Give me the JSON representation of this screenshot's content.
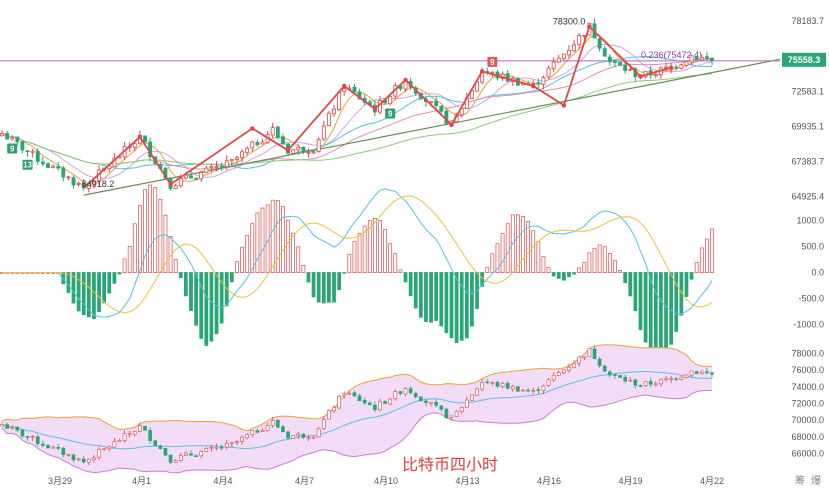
{
  "chart_data": [
    {
      "type": "candlestick",
      "panel": "price",
      "ylim": [
        64000,
        79500
      ],
      "y_ticks": [
        "78183.7",
        "75558.3",
        "72583.1",
        "69935.1",
        "67383.7",
        "64925.4"
      ],
      "current_price": "75558.3",
      "fib_label": "0.236(75472.4)",
      "fib_level": 75472.4,
      "high_label": "78300.0",
      "high_value": 78300,
      "low_label": "64918.2",
      "low_value": 64918.2,
      "td_counts": [
        {
          "text": "9",
          "color": "#2d9e6e",
          "candle": 2
        },
        {
          "text": "13",
          "color": "#2d9e6e",
          "candle": 5
        },
        {
          "text": "9",
          "color": "#2d9e6e",
          "candle": 76
        },
        {
          "text": "9",
          "color": "#e05a5a",
          "candle": 96
        }
      ],
      "colors": {
        "up": "#e04848",
        "down": "#2aa676",
        "trend": "#e04848",
        "support": "#6a8d54",
        "fib": "#b065c7"
      }
    },
    {
      "type": "bar",
      "panel": "macd",
      "ylim": [
        -1200,
        1200
      ],
      "y_ticks": [
        "1000.0",
        "500.0",
        "0.0",
        "-500.0",
        "-1000.0"
      ]
    },
    {
      "type": "area",
      "panel": "bollinger",
      "ylim": [
        65000,
        79000
      ],
      "y_ticks": [
        "78000.0",
        "76000.0",
        "74000.0",
        "72000.0",
        "70000.0",
        "68000.0",
        "66000.0"
      ]
    }
  ],
  "x_ticks": [
    "3月29",
    "4月1",
    "4月4",
    "4月7",
    "4月10",
    "4月13",
    "4月16",
    "4月19",
    "4月22"
  ],
  "caption": "比特币四小时",
  "side_labels": [
    "筹",
    "爆"
  ]
}
